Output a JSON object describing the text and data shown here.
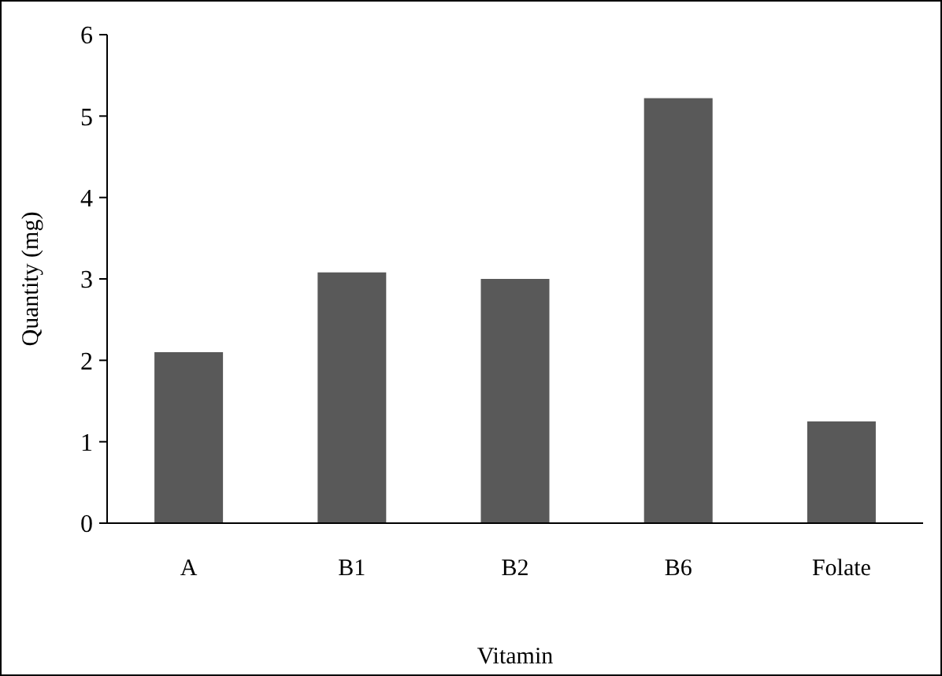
{
  "chart_data": {
    "type": "bar",
    "xlabel": "Vitamin",
    "ylabel": "Quantity (mg)",
    "categories": [
      "A",
      "B1",
      "B2",
      "B6",
      "Folate"
    ],
    "values": [
      2.1,
      3.08,
      3.0,
      5.22,
      1.25
    ],
    "color": "#595959",
    "ylim": [
      0,
      6
    ],
    "yticks": [
      0,
      1,
      2,
      3,
      4,
      5,
      6
    ],
    "grid": false
  }
}
